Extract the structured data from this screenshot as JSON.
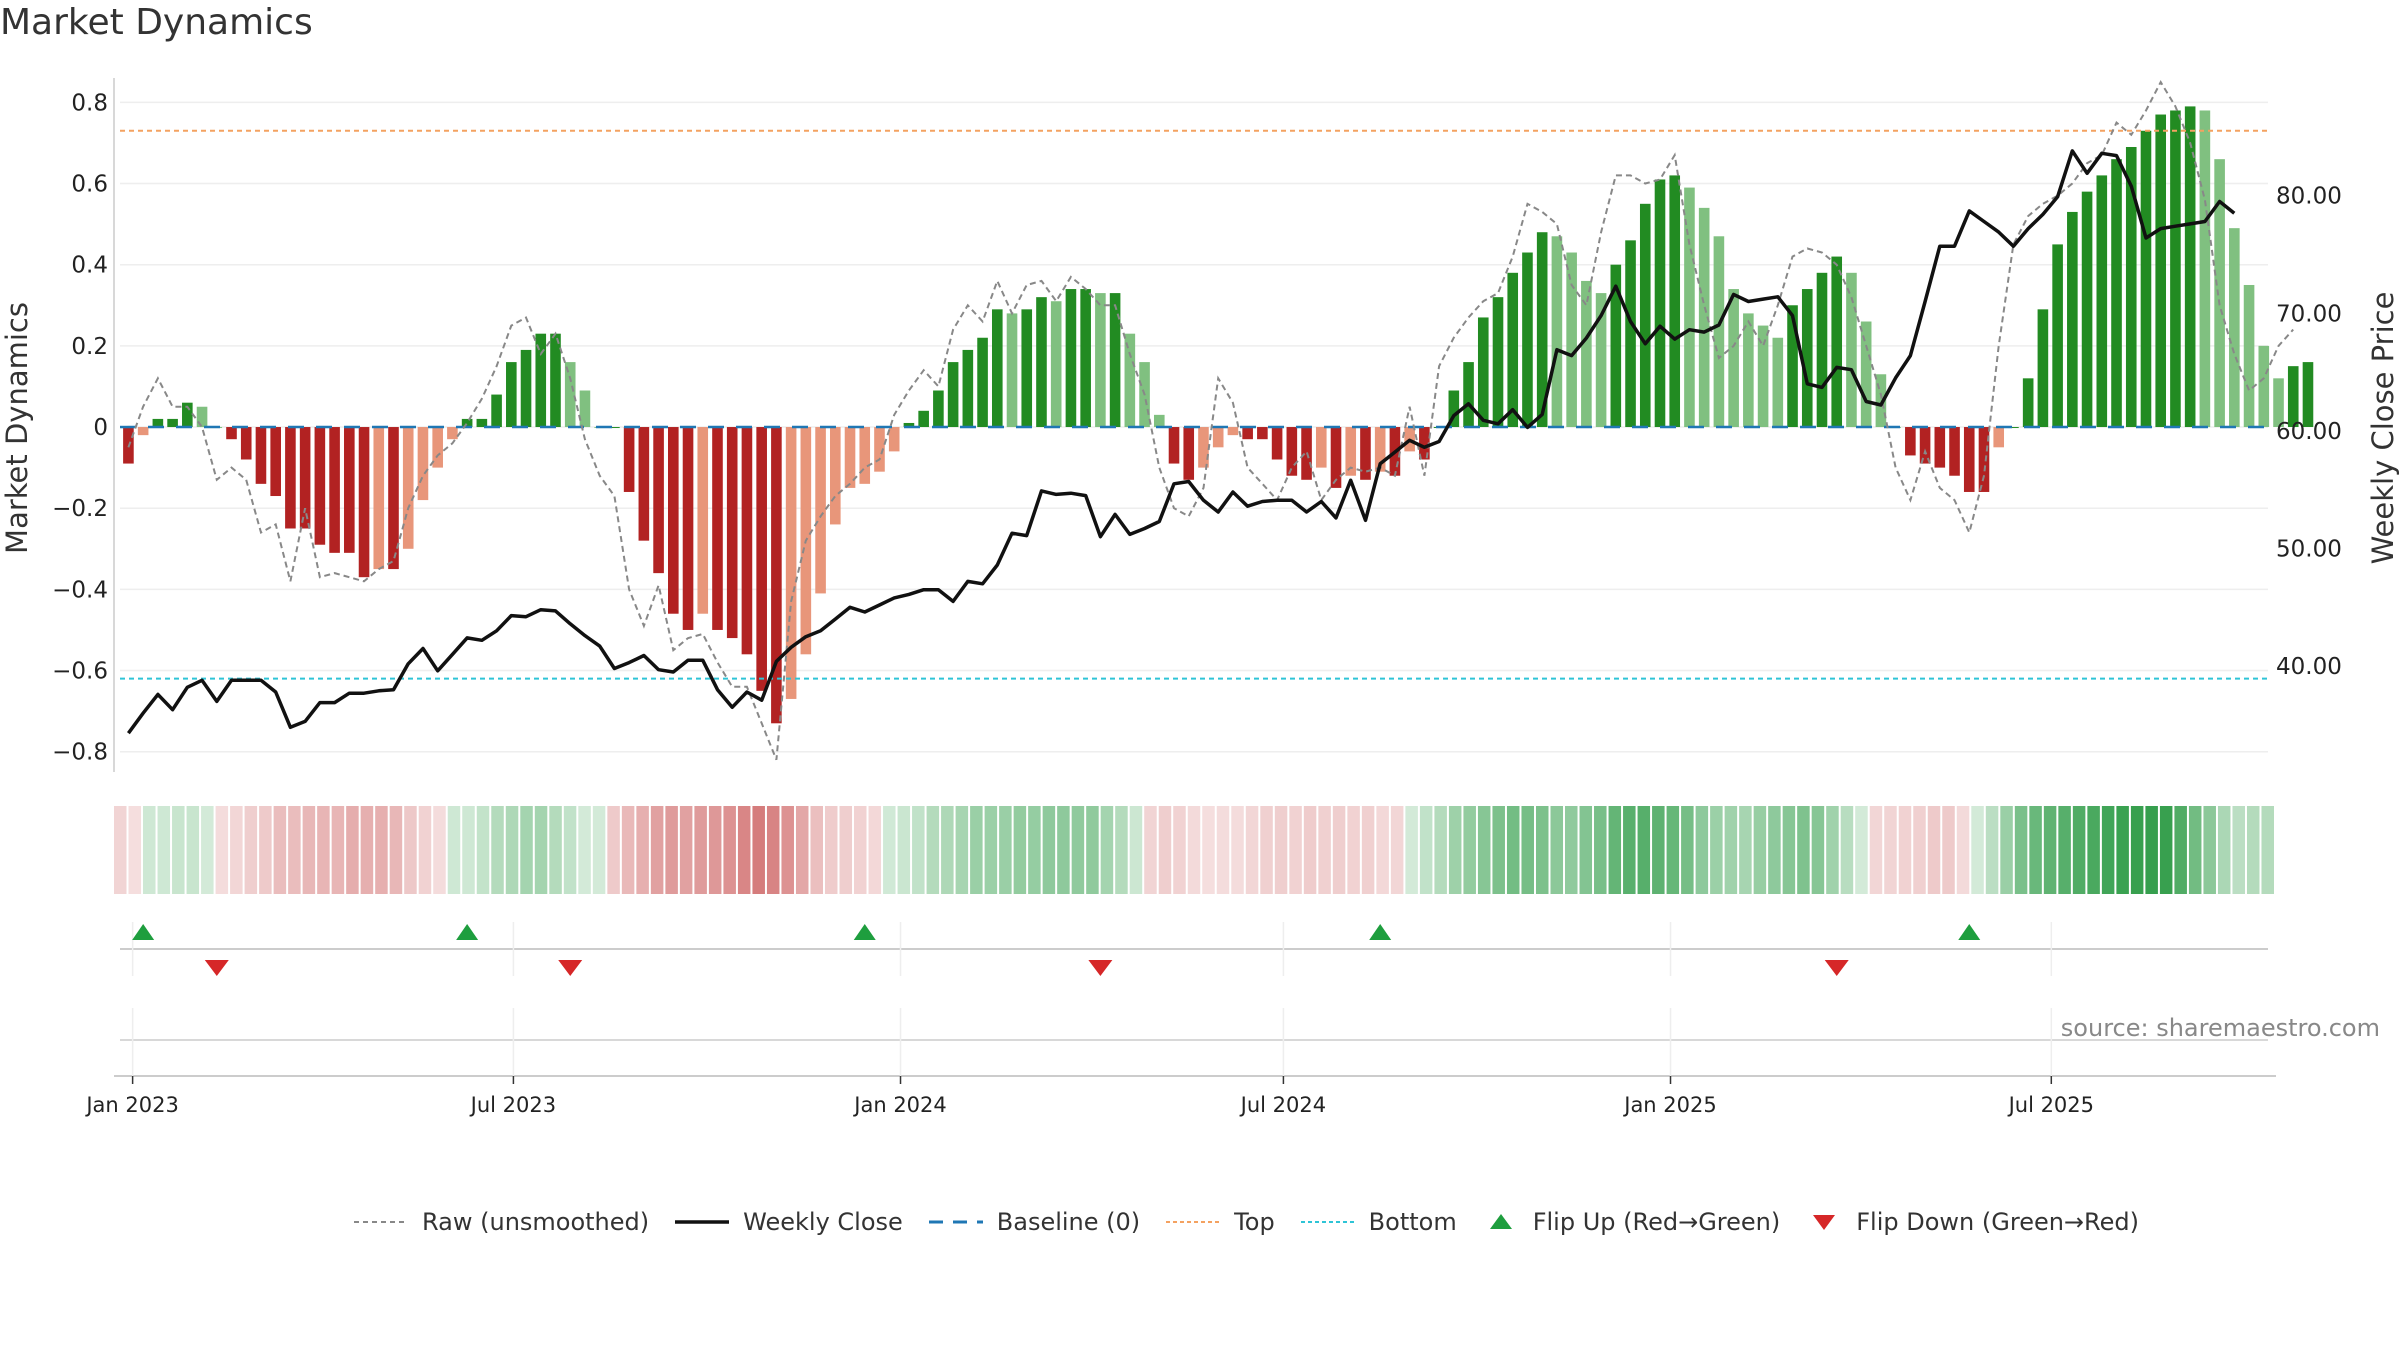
{
  "title": "Market Dynamics",
  "source_note": "source: sharemaestro.com",
  "colors": {
    "green_dark": "#228b22",
    "green_light": "#80c080",
    "red_dark": "#b22222",
    "red_light": "#e8967a",
    "close_line": "#111111",
    "raw_line": "#888888",
    "baseline": "#1f77b4",
    "top_line": "#f4a261",
    "bottom_line": "#2ec4d6"
  },
  "legend": [
    {
      "key": "raw",
      "label": "Raw (unsmoothed)",
      "icon": "dashed-gray-line"
    },
    {
      "key": "close",
      "label": "Weekly Close",
      "icon": "solid-black-line"
    },
    {
      "key": "baseline",
      "label": "Baseline (0)",
      "icon": "dashed-blue-line"
    },
    {
      "key": "top",
      "label": "Top",
      "icon": "dotted-orange-line"
    },
    {
      "key": "bottom",
      "label": "Bottom",
      "icon": "dotted-cyan-line"
    },
    {
      "key": "flip_up",
      "label": "Flip Up (Red→Green)",
      "icon": "green-up-triangle"
    },
    {
      "key": "flip_down",
      "label": "Flip Down (Green→Red)",
      "icon": "red-down-triangle"
    }
  ],
  "chart_data": {
    "type": "bar",
    "x_start": "2022-12-30",
    "x_step_days": 7,
    "x_ticks": [
      "Jan 2023",
      "Jul 2023",
      "Jan 2024",
      "Jul 2024",
      "Jan 2025",
      "Jul 2025"
    ],
    "x_tick_dates": [
      "2023-01-01",
      "2023-07-01",
      "2024-01-01",
      "2024-07-01",
      "2025-01-01",
      "2025-07-01"
    ],
    "x_range": [
      "2022-12-26",
      "2025-10-12"
    ],
    "y_left": {
      "label": "Market Dynamics",
      "range": [
        -0.85,
        0.86
      ],
      "ticks": [
        -0.8,
        -0.6,
        -0.4,
        -0.2,
        0,
        0.2,
        0.4,
        0.6,
        0.8
      ],
      "tick_labels": [
        "−0.8",
        "−0.6",
        "−0.4",
        "−0.2",
        "0",
        "0.2",
        "0.4",
        "0.6",
        "0.8"
      ]
    },
    "y_right": {
      "label": "Weekly Close Price",
      "range": [
        31,
        90
      ],
      "ticks": [
        40,
        50,
        60,
        70,
        80
      ],
      "tick_labels": [
        "40.00",
        "50.00",
        "60.00",
        "70.00",
        "80.00"
      ]
    },
    "top_level": 0.73,
    "bottom_level": -0.62,
    "baseline_level": 0,
    "grid": true,
    "legend_position": "bottom",
    "series": [
      {
        "name": "Market Dynamics",
        "kind": "bar",
        "values": [
          -0.09,
          -0.02,
          0.02,
          0.02,
          0.06,
          0.05,
          0.0,
          -0.03,
          -0.08,
          -0.14,
          -0.17,
          -0.25,
          -0.25,
          -0.29,
          -0.31,
          -0.31,
          -0.37,
          -0.35,
          -0.35,
          -0.3,
          -0.18,
          -0.1,
          -0.03,
          0.02,
          0.02,
          0.08,
          0.16,
          0.19,
          0.23,
          0.23,
          0.16,
          0.09,
          0.0,
          0.0,
          -0.16,
          -0.28,
          -0.36,
          -0.46,
          -0.5,
          -0.46,
          -0.5,
          -0.52,
          -0.56,
          -0.65,
          -0.73,
          -0.67,
          -0.56,
          -0.41,
          -0.24,
          -0.15,
          -0.14,
          -0.11,
          -0.06,
          0.01,
          0.04,
          0.09,
          0.16,
          0.19,
          0.22,
          0.29,
          0.28,
          0.29,
          0.32,
          0.31,
          0.34,
          0.34,
          0.33,
          0.33,
          0.23,
          0.16,
          0.03,
          -0.09,
          -0.13,
          -0.1,
          -0.05,
          -0.02,
          -0.03,
          -0.03,
          -0.08,
          -0.12,
          -0.13,
          -0.1,
          -0.15,
          -0.12,
          -0.13,
          -0.11,
          -0.12,
          -0.06,
          -0.08,
          0.0,
          0.09,
          0.16,
          0.27,
          0.32,
          0.38,
          0.43,
          0.48,
          0.47,
          0.43,
          0.36,
          0.33,
          0.4,
          0.46,
          0.55,
          0.61,
          0.62,
          0.59,
          0.54,
          0.47,
          0.34,
          0.28,
          0.25,
          0.22,
          0.3,
          0.34,
          0.38,
          0.42,
          0.38,
          0.26,
          0.13,
          0.0,
          -0.07,
          -0.09,
          -0.1,
          -0.12,
          -0.16,
          -0.16,
          -0.05,
          0.0,
          0.12,
          0.29,
          0.45,
          0.53,
          0.58,
          0.62,
          0.66,
          0.69,
          0.73,
          0.77,
          0.78,
          0.79,
          0.78,
          0.66,
          0.49,
          0.35,
          0.2,
          0.12,
          0.15,
          0.16
        ]
      },
      {
        "name": "Raw (unsmoothed)",
        "kind": "line",
        "values": [
          -0.05,
          0.05,
          0.12,
          0.05,
          0.05,
          0.0,
          -0.13,
          -0.1,
          -0.13,
          -0.26,
          -0.24,
          -0.38,
          -0.2,
          -0.37,
          -0.36,
          -0.37,
          -0.38,
          -0.35,
          -0.33,
          -0.2,
          -0.12,
          -0.07,
          -0.04,
          0.01,
          0.07,
          0.15,
          0.25,
          0.27,
          0.18,
          0.23,
          0.12,
          -0.03,
          -0.12,
          -0.17,
          -0.4,
          -0.49,
          -0.39,
          -0.55,
          -0.52,
          -0.51,
          -0.58,
          -0.64,
          -0.64,
          -0.73,
          -0.82,
          -0.43,
          -0.28,
          -0.22,
          -0.17,
          -0.14,
          -0.1,
          -0.08,
          0.03,
          0.09,
          0.14,
          0.1,
          0.24,
          0.3,
          0.26,
          0.36,
          0.28,
          0.35,
          0.36,
          0.31,
          0.37,
          0.34,
          0.3,
          0.3,
          0.18,
          0.08,
          -0.1,
          -0.2,
          -0.22,
          -0.15,
          0.12,
          0.06,
          -0.1,
          -0.14,
          -0.18,
          -0.1,
          -0.06,
          -0.18,
          -0.13,
          -0.1,
          -0.11,
          -0.1,
          -0.12,
          0.05,
          -0.12,
          0.15,
          0.22,
          0.27,
          0.31,
          0.33,
          0.42,
          0.55,
          0.53,
          0.5,
          0.35,
          0.3,
          0.48,
          0.62,
          0.62,
          0.6,
          0.61,
          0.67,
          0.45,
          0.3,
          0.17,
          0.2,
          0.26,
          0.2,
          0.3,
          0.42,
          0.44,
          0.43,
          0.4,
          0.32,
          0.2,
          0.08,
          -0.1,
          -0.18,
          -0.06,
          -0.15,
          -0.18,
          -0.26,
          -0.12,
          0.2,
          0.45,
          0.52,
          0.55,
          0.57,
          0.6,
          0.65,
          0.67,
          0.75,
          0.72,
          0.78,
          0.85,
          0.79,
          0.7,
          0.56,
          0.3,
          0.18,
          0.09,
          0.12,
          0.2,
          0.24
        ]
      },
      {
        "name": "Weekly Close",
        "kind": "line",
        "axis": "right",
        "values": [
          34.3,
          36.0,
          37.6,
          36.3,
          38.2,
          38.8,
          37.0,
          38.8,
          38.8,
          38.8,
          37.8,
          34.8,
          35.3,
          36.9,
          36.9,
          37.7,
          37.7,
          37.9,
          38.0,
          40.2,
          41.5,
          39.6,
          41.0,
          42.4,
          42.2,
          43.0,
          44.3,
          44.2,
          44.8,
          44.7,
          43.6,
          42.6,
          41.7,
          39.8,
          40.3,
          40.9,
          39.7,
          39.5,
          40.5,
          40.5,
          38.0,
          36.5,
          37.8,
          37.1,
          40.4,
          41.6,
          42.5,
          43.0,
          44.0,
          45.0,
          44.6,
          45.2,
          45.8,
          46.1,
          46.5,
          46.5,
          45.5,
          47.2,
          47.0,
          48.6,
          51.3,
          51.1,
          54.9,
          54.6,
          54.7,
          54.5,
          51.0,
          52.9,
          51.2,
          51.7,
          52.3,
          55.5,
          55.7,
          54.1,
          53.1,
          54.8,
          53.6,
          54.0,
          54.1,
          54.1,
          53.1,
          54.0,
          52.6,
          55.8,
          52.4,
          57.2,
          58.2,
          59.2,
          58.6,
          59.1,
          61.3,
          62.3,
          60.9,
          60.6,
          61.8,
          60.3,
          61.4,
          66.9,
          66.4,
          67.9,
          69.8,
          72.3,
          69.3,
          67.4,
          68.9,
          67.8,
          68.6,
          68.4,
          69.0,
          71.6,
          71.0,
          71.2,
          71.4,
          69.8,
          64.0,
          63.7,
          65.4,
          65.2,
          62.5,
          62.2,
          64.5,
          66.4,
          71.0,
          75.7,
          75.7,
          78.7,
          77.8,
          76.9,
          75.7,
          77.2,
          78.4,
          79.9,
          83.8,
          81.9,
          83.6,
          83.4,
          80.8,
          76.4,
          77.2,
          77.4,
          77.6,
          77.8,
          79.5,
          78.5
        ]
      }
    ],
    "flip_up_dates": [
      "2023-01-06",
      "2023-06-09",
      "2023-12-15",
      "2024-08-16",
      "2025-05-23"
    ],
    "flip_down_dates": [
      "2023-02-10",
      "2023-07-28",
      "2024-04-05",
      "2025-03-21"
    ]
  }
}
